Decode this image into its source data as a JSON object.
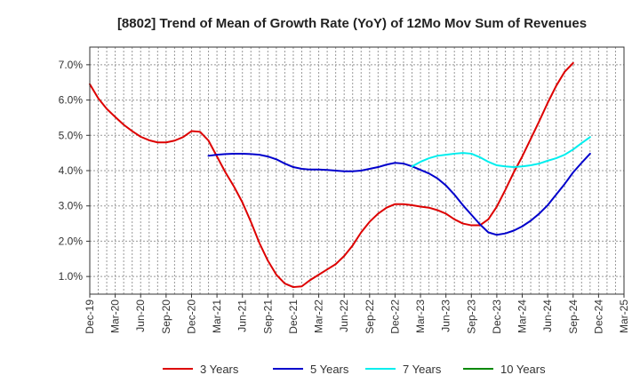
{
  "chart_data": {
    "type": "line",
    "title": "[8802]  Trend of Mean of Growth Rate (YoY) of 12Mo Mov Sum of Revenues",
    "xlabel": "",
    "ylabel": "",
    "x_ticks": [
      "Dec-19",
      "Mar-20",
      "Jun-20",
      "Sep-20",
      "Dec-20",
      "Mar-21",
      "Jun-21",
      "Sep-21",
      "Dec-21",
      "Mar-22",
      "Jun-22",
      "Sep-22",
      "Dec-22",
      "Mar-23",
      "Jun-23",
      "Sep-23",
      "Dec-23",
      "Mar-24",
      "Jun-24",
      "Sep-24",
      "Dec-24",
      "Mar-25"
    ],
    "y_ticks": [
      "1.0%",
      "2.0%",
      "3.0%",
      "4.0%",
      "5.0%",
      "6.0%",
      "7.0%"
    ],
    "y_tick_values": [
      1,
      2,
      3,
      4,
      5,
      6,
      7
    ],
    "ylim": [
      0.5,
      7.5
    ],
    "x_range_months": [
      0,
      63
    ],
    "grid": true,
    "legend_position": "bottom",
    "series": [
      {
        "name": "3 Years",
        "color": "#dd0000",
        "months": [
          0,
          1,
          2,
          3,
          4,
          5,
          6,
          7,
          8,
          9,
          10,
          11,
          12,
          13,
          14,
          15,
          16,
          17,
          18,
          19,
          20,
          21,
          22,
          23,
          24,
          25,
          26,
          27,
          28,
          29,
          30,
          31,
          32,
          33,
          34,
          35,
          36,
          37,
          38,
          39,
          40,
          41,
          42,
          43,
          44,
          45,
          46,
          47,
          48,
          49,
          50,
          51,
          52,
          53,
          54,
          55,
          56,
          57,
          58,
          59,
          60
        ],
        "values": [
          6.45,
          6.05,
          5.75,
          5.52,
          5.3,
          5.12,
          4.96,
          4.86,
          4.8,
          4.8,
          4.85,
          4.95,
          5.12,
          5.1,
          4.85,
          4.4,
          3.95,
          3.55,
          3.1,
          2.55,
          1.95,
          1.45,
          1.05,
          0.8,
          0.7,
          0.72,
          0.9,
          1.05,
          1.2,
          1.35,
          1.58,
          1.88,
          2.25,
          2.55,
          2.78,
          2.95,
          3.05,
          3.05,
          3.02,
          2.98,
          2.95,
          2.88,
          2.78,
          2.62,
          2.5,
          2.45,
          2.45,
          2.62,
          2.98,
          3.45,
          3.95,
          4.4,
          4.9,
          5.4,
          5.92,
          6.4,
          6.8,
          7.05,
          null,
          null,
          null
        ]
      },
      {
        "name": "5 Years",
        "color": "#0000cc",
        "months": [
          14,
          15,
          16,
          17,
          18,
          19,
          20,
          21,
          22,
          23,
          24,
          25,
          26,
          27,
          28,
          29,
          30,
          31,
          32,
          33,
          34,
          35,
          36,
          37,
          38,
          39,
          40,
          41,
          42,
          43,
          44,
          45,
          46,
          47,
          48,
          49,
          50,
          51,
          52,
          53,
          54,
          55,
          56,
          57,
          58,
          59,
          60
        ],
        "values": [
          4.42,
          4.45,
          4.47,
          4.48,
          4.48,
          4.47,
          4.45,
          4.4,
          4.32,
          4.2,
          4.1,
          4.05,
          4.03,
          4.03,
          4.02,
          4.0,
          3.98,
          3.98,
          4.0,
          4.05,
          4.1,
          4.17,
          4.22,
          4.2,
          4.12,
          4.02,
          3.92,
          3.78,
          3.58,
          3.32,
          3.02,
          2.75,
          2.48,
          2.25,
          2.18,
          2.22,
          2.3,
          2.42,
          2.58,
          2.78,
          3.02,
          3.32,
          3.62,
          3.95,
          4.22,
          4.48,
          null
        ]
      },
      {
        "name": "7 Years",
        "color": "#00eeee",
        "months": [
          38,
          39,
          40,
          41,
          42,
          43,
          44,
          45,
          46,
          47,
          48,
          49,
          50,
          51,
          52,
          53,
          54,
          55,
          56,
          57,
          58,
          59,
          60
        ],
        "values": [
          4.12,
          4.25,
          4.35,
          4.42,
          4.45,
          4.48,
          4.5,
          4.48,
          4.38,
          4.25,
          4.15,
          4.12,
          4.1,
          4.12,
          4.15,
          4.2,
          4.28,
          4.35,
          4.45,
          4.6,
          4.78,
          4.95,
          null
        ]
      },
      {
        "name": "10 Years",
        "color": "#008800",
        "months": [],
        "values": []
      }
    ]
  }
}
